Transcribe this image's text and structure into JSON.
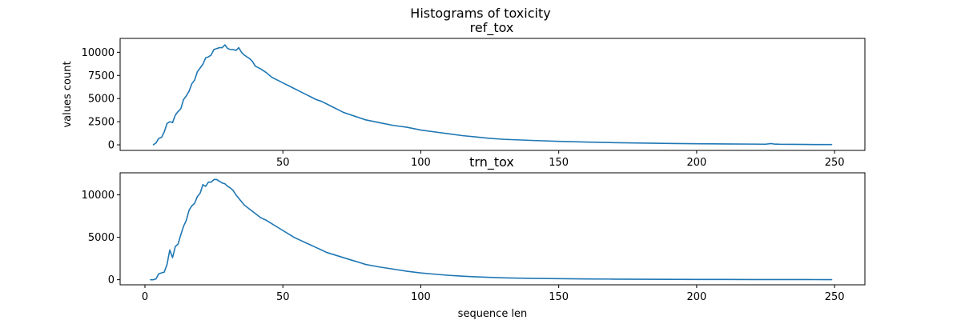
{
  "figure": {
    "suptitle": "Histograms of toxicity"
  },
  "chart_data": [
    {
      "type": "line",
      "title": "ref_tox",
      "xlabel": "",
      "ylabel": "values count",
      "xlim": [
        -9,
        261
      ],
      "ylim": [
        -600,
        11500
      ],
      "xticks": [
        50,
        100,
        150,
        200,
        250
      ],
      "yticks": [
        0,
        2500,
        5000,
        7500,
        10000
      ],
      "ytick_labels": [
        "0",
        "2500",
        "5000",
        "7500",
        "10000"
      ],
      "grid": false,
      "line_color": "#1f77b4",
      "series": [
        {
          "x": [
            3,
            4,
            5,
            6,
            7,
            8,
            9,
            10,
            11,
            12,
            13,
            14,
            15,
            16,
            17,
            18,
            19,
            20,
            21,
            22,
            23,
            24,
            25,
            26,
            27,
            28,
            29,
            30,
            31,
            32,
            33,
            34,
            35,
            36,
            37,
            38,
            39,
            40,
            42,
            44,
            46,
            48,
            50,
            52,
            54,
            56,
            58,
            60,
            62,
            64,
            66,
            68,
            70,
            72,
            74,
            76,
            78,
            80,
            85,
            90,
            95,
            100,
            105,
            110,
            115,
            120,
            125,
            130,
            140,
            150,
            160,
            170,
            180,
            190,
            200,
            210,
            220,
            225,
            227,
            228,
            230,
            235,
            240,
            245,
            249
          ],
          "y": [
            0,
            200,
            700,
            800,
            1400,
            2300,
            2500,
            2400,
            3200,
            3600,
            3900,
            4900,
            5300,
            5800,
            6600,
            7000,
            7900,
            8300,
            8700,
            9400,
            9500,
            9700,
            10300,
            10400,
            10500,
            10500,
            10800,
            10400,
            10300,
            10300,
            10200,
            10500,
            10000,
            9700,
            9500,
            9300,
            9000,
            8500,
            8200,
            7800,
            7300,
            7000,
            6700,
            6400,
            6100,
            5800,
            5500,
            5200,
            4900,
            4700,
            4400,
            4100,
            3800,
            3500,
            3300,
            3100,
            2900,
            2700,
            2400,
            2100,
            1900,
            1600,
            1400,
            1200,
            1000,
            850,
            700,
            600,
            480,
            380,
            300,
            240,
            190,
            150,
            120,
            100,
            80,
            70,
            140,
            90,
            60,
            50,
            40,
            30,
            30
          ]
        }
      ]
    },
    {
      "type": "line",
      "title": "trn_tox",
      "xlabel": "sequence len",
      "ylabel": "",
      "xlim": [
        -9,
        261
      ],
      "ylim": [
        -600,
        12600
      ],
      "xticks": [
        0,
        50,
        100,
        150,
        200,
        250
      ],
      "yticks": [
        0,
        5000,
        10000
      ],
      "ytick_labels": [
        "0",
        "5000",
        "10000"
      ],
      "grid": false,
      "line_color": "#1f77b4",
      "series": [
        {
          "x": [
            2,
            3,
            4,
            5,
            6,
            7,
            8,
            9,
            10,
            11,
            12,
            13,
            14,
            15,
            16,
            17,
            18,
            19,
            20,
            21,
            22,
            23,
            24,
            25,
            26,
            27,
            28,
            29,
            30,
            31,
            32,
            33,
            34,
            35,
            36,
            38,
            40,
            42,
            44,
            46,
            48,
            50,
            52,
            54,
            56,
            58,
            60,
            62,
            64,
            66,
            68,
            70,
            72,
            74,
            76,
            78,
            80,
            85,
            90,
            95,
            100,
            105,
            110,
            115,
            120,
            125,
            130,
            140,
            150,
            160,
            170,
            180,
            190,
            200,
            210,
            220,
            230,
            240,
            249
          ],
          "y": [
            0,
            0,
            100,
            700,
            800,
            900,
            1800,
            3500,
            2600,
            3900,
            4200,
            5300,
            6300,
            7000,
            8200,
            8700,
            9000,
            9800,
            10200,
            11200,
            11000,
            11500,
            11500,
            11800,
            11800,
            11600,
            11400,
            11300,
            11000,
            10800,
            10500,
            10000,
            9600,
            9200,
            8800,
            8300,
            7800,
            7300,
            7000,
            6600,
            6200,
            5800,
            5400,
            5000,
            4700,
            4400,
            4100,
            3800,
            3500,
            3200,
            3000,
            2800,
            2600,
            2400,
            2200,
            2000,
            1800,
            1500,
            1250,
            1000,
            800,
            650,
            520,
            420,
            340,
            280,
            220,
            160,
            120,
            90,
            70,
            55,
            45,
            35,
            28,
            22,
            18,
            15,
            10
          ]
        }
      ]
    }
  ]
}
